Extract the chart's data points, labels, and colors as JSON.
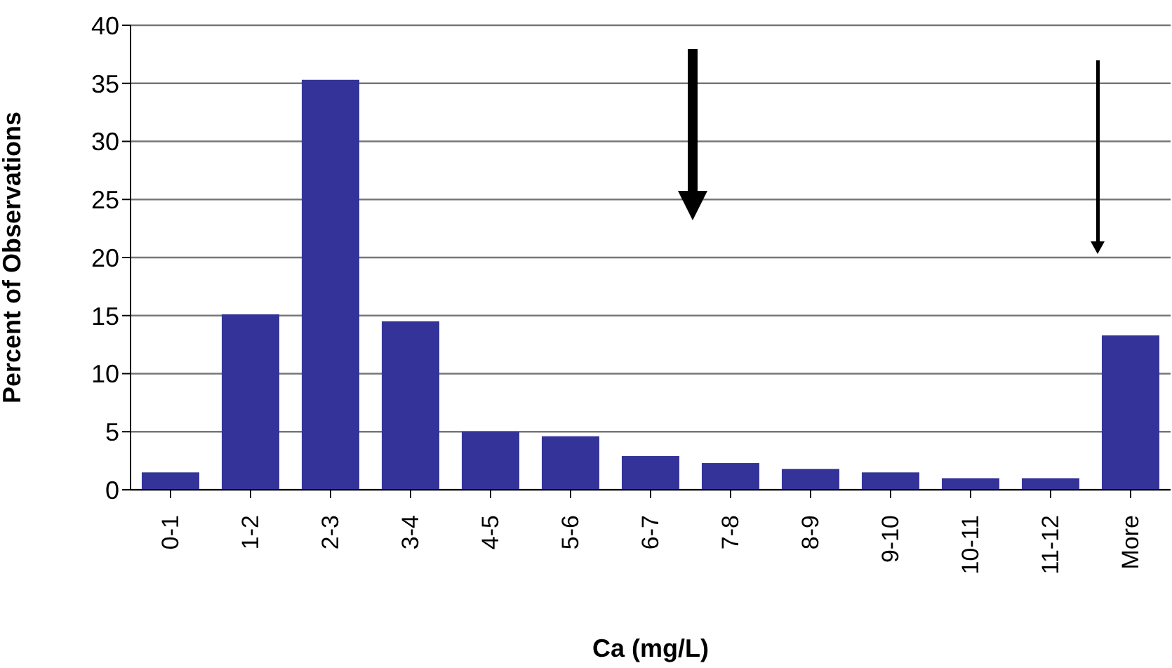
{
  "chart_data": {
    "type": "bar",
    "categories": [
      "0-1",
      "1-2",
      "2-3",
      "3-4",
      "4-5",
      "5-6",
      "6-7",
      "7-8",
      "8-9",
      "9-10",
      "10-11",
      "11-12",
      "More"
    ],
    "values": [
      1.5,
      15.1,
      35.3,
      14.5,
      5.0,
      4.6,
      2.9,
      2.3,
      1.8,
      1.5,
      1.0,
      1.0,
      13.3
    ],
    "color": "#333399",
    "xlabel": "Ca (mg/L)",
    "ylabel": "Percent of Observations",
    "ylim": [
      0,
      40
    ],
    "yticks": [
      0,
      5,
      10,
      15,
      20,
      25,
      30,
      35,
      40
    ],
    "grid": "y"
  }
}
